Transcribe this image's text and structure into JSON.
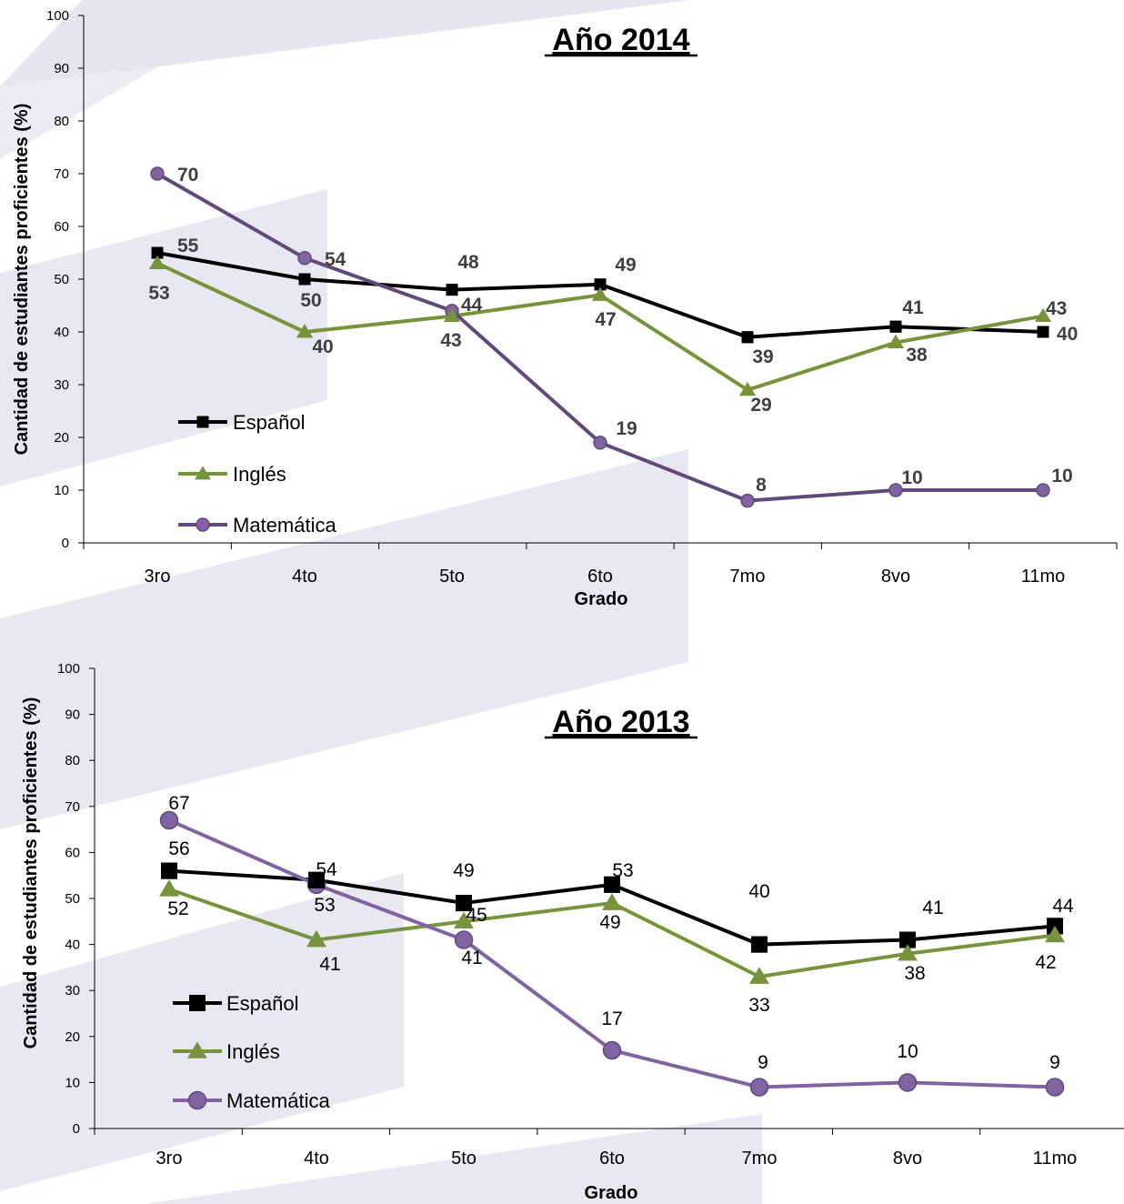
{
  "chart_data": [
    {
      "type": "line",
      "title": "Año 2014",
      "xlabel": "Grado",
      "ylabel": "Cantidad de estudiantes proficientes (%)",
      "ylim": [
        0,
        100
      ],
      "yticks": [
        0,
        10,
        20,
        30,
        40,
        50,
        60,
        70,
        80,
        90,
        100
      ],
      "categories": [
        "3ro",
        "4to",
        "5to",
        "6to",
        "7mo",
        "8vo",
        "11mo"
      ],
      "legend_position": "bottom-left",
      "series": [
        {
          "name": "Español",
          "marker": "square",
          "color": "#000000",
          "values": [
            55,
            50,
            48,
            49,
            39,
            41,
            40
          ]
        },
        {
          "name": "Inglés",
          "marker": "triangle",
          "color": "#77933c",
          "values": [
            53,
            40,
            43,
            47,
            29,
            38,
            43
          ]
        },
        {
          "name": "Matemática",
          "marker": "circle",
          "color": "#604a7b",
          "values": [
            70,
            54,
            44,
            19,
            8,
            10,
            10
          ]
        }
      ]
    },
    {
      "type": "line",
      "title": "Año 2013",
      "xlabel": "Grado",
      "ylabel": "Cantidad de estudiantes proficientes (%)",
      "ylim": [
        0,
        100
      ],
      "yticks": [
        0,
        10,
        20,
        30,
        40,
        50,
        60,
        70,
        80,
        90,
        100
      ],
      "categories": [
        "3ro",
        "4to",
        "5to",
        "6to",
        "7mo",
        "8vo",
        "11mo"
      ],
      "legend_position": "bottom-left",
      "series": [
        {
          "name": "Español",
          "marker": "square",
          "color": "#000000",
          "values": [
            56,
            54,
            49,
            53,
            40,
            41,
            44
          ]
        },
        {
          "name": "Inglés",
          "marker": "triangle",
          "color": "#77933c",
          "values": [
            52,
            41,
            45,
            49,
            33,
            38,
            42
          ]
        },
        {
          "name": "Matemática",
          "marker": "circle",
          "color": "#8064a2",
          "values": [
            67,
            53,
            41,
            17,
            9,
            10,
            9
          ]
        }
      ]
    }
  ]
}
